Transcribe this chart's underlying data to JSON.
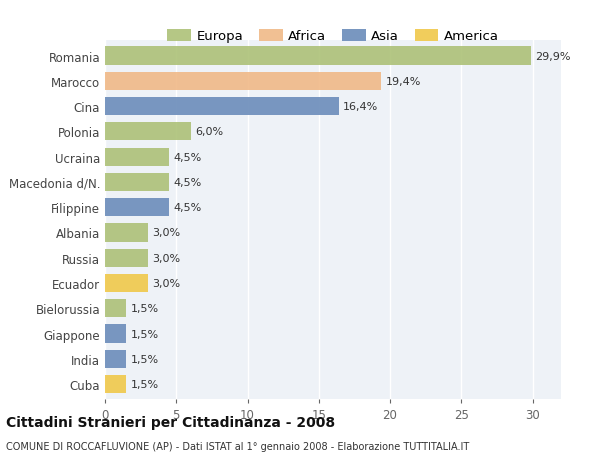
{
  "categories": [
    "Romania",
    "Marocco",
    "Cina",
    "Polonia",
    "Ucraina",
    "Macedonia d/N.",
    "Filippine",
    "Albania",
    "Russia",
    "Ecuador",
    "Bielorussia",
    "Giappone",
    "India",
    "Cuba"
  ],
  "values": [
    29.9,
    19.4,
    16.4,
    6.0,
    4.5,
    4.5,
    4.5,
    3.0,
    3.0,
    3.0,
    1.5,
    1.5,
    1.5,
    1.5
  ],
  "labels": [
    "29,9%",
    "19,4%",
    "16,4%",
    "6,0%",
    "4,5%",
    "4,5%",
    "4,5%",
    "3,0%",
    "3,0%",
    "3,0%",
    "1,5%",
    "1,5%",
    "1,5%",
    "1,5%"
  ],
  "continents": [
    "Europa",
    "Africa",
    "Asia",
    "Europa",
    "Europa",
    "Europa",
    "Asia",
    "Europa",
    "Europa",
    "America",
    "Europa",
    "Asia",
    "Asia",
    "America"
  ],
  "colors": {
    "Europa": "#adc178",
    "Africa": "#f0b987",
    "Asia": "#6b8cba",
    "America": "#f0c84a"
  },
  "xlim": [
    0,
    32
  ],
  "xticks": [
    0,
    5,
    10,
    15,
    20,
    25,
    30
  ],
  "background_color": "#eef2f7",
  "title": "Cittadini Stranieri per Cittadinanza - 2008",
  "subtitle": "COMUNE DI ROCCAFLUVIONE (AP) - Dati ISTAT al 1° gennaio 2008 - Elaborazione TUTTITALIA.IT",
  "bar_height": 0.72,
  "figsize": [
    6.0,
    4.6
  ],
  "dpi": 100
}
